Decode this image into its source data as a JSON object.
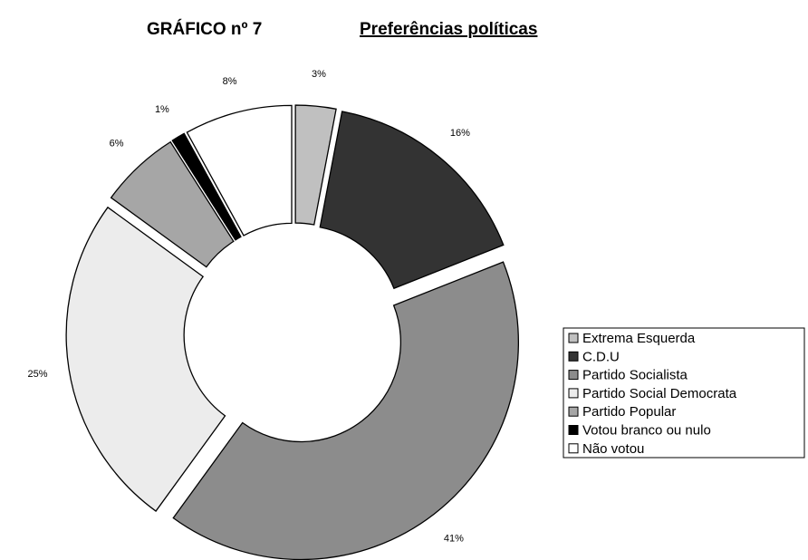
{
  "chart_data": {
    "type": "donut",
    "title": "GRÁFICO nº 7",
    "subtitle": "Preferências políticas",
    "categories": [
      "Extrema Esquerda",
      "C.D.U",
      "Partido Socialista",
      "Partido Social Democrata",
      "Partido Popular",
      "Votou branco ou nulo",
      "Não votou"
    ],
    "values": [
      3,
      16,
      41,
      25,
      6,
      1,
      8
    ],
    "value_labels": [
      "3%",
      "16%",
      "41%",
      "25%",
      "6%",
      "1%",
      "8%"
    ],
    "colors": [
      "#c0c0c0",
      "#333333",
      "#8c8c8c",
      "#ececec",
      "#a6a6a6",
      "#000000",
      "#ffffff"
    ],
    "legend": "right"
  }
}
